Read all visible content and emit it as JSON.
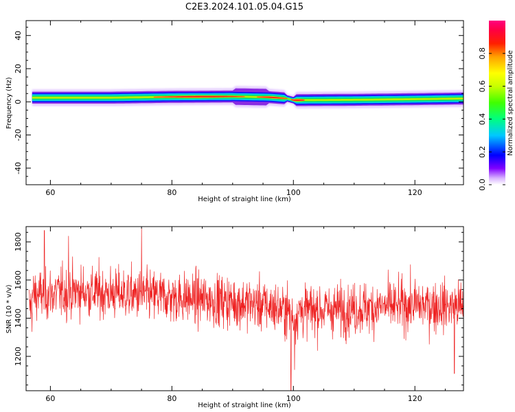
{
  "figure_title": "C2E3.2024.101.05.04.G15",
  "chart_data": [
    {
      "type": "heatmap",
      "title": "",
      "xlabel": "Height of straight line (km)",
      "ylabel": "Frequency (Hz)",
      "xlim": [
        56,
        128
      ],
      "ylim": [
        -50,
        49
      ],
      "xticks": [
        "60",
        "80",
        "100",
        "120"
      ],
      "yticks": [
        "40",
        "20",
        "0",
        "-20",
        "-40"
      ],
      "colorbar": {
        "label": "Normalized spectral amplitude",
        "range": [
          0.0,
          1.0
        ],
        "ticks": [
          "0.0",
          "0.2",
          "0.4",
          "0.6",
          "0.8"
        ],
        "colormap": [
          "#ffffff",
          "#d9b3ff",
          "#8000ff",
          "#0000ff",
          "#00c8ff",
          "#00ff80",
          "#40ff00",
          "#c8ff00",
          "#ffff00",
          "#ffa000",
          "#ff2000",
          "#ff0040",
          "#ff0080"
        ]
      },
      "band": {
        "center_hz": [
          {
            "x": 57,
            "y": 2.5
          },
          {
            "x": 70,
            "y": 2.5
          },
          {
            "x": 80,
            "y": 3
          },
          {
            "x": 90,
            "y": 3.2
          },
          {
            "x": 96,
            "y": 2.8
          },
          {
            "x": 99,
            "y": 2
          },
          {
            "x": 100,
            "y": 1
          },
          {
            "x": 110,
            "y": 1.2
          },
          {
            "x": 120,
            "y": 1.6
          },
          {
            "x": 128,
            "y": 2
          }
        ],
        "peak_segments": [
          {
            "x0": 77,
            "x1": 92,
            "level": 0.85
          },
          {
            "x0": 94,
            "x1": 99,
            "level": 0.8
          },
          {
            "x0": 99.6,
            "x1": 102,
            "level": 0.95
          }
        ]
      }
    },
    {
      "type": "line",
      "title": "",
      "xlabel": "Height of straight line (km)",
      "ylabel": "SNR (10 * v/v)",
      "xlim": [
        56,
        128
      ],
      "ylim": [
        1020,
        1880
      ],
      "xticks": [
        "60",
        "80",
        "100",
        "120"
      ],
      "yticks": [
        "1800",
        "1600",
        "1400",
        "1200"
      ],
      "series": [
        {
          "color": "#ee2222",
          "n_points": 1500,
          "noisy_around": [
            {
              "x": 57,
              "y": 1520
            },
            {
              "x": 65,
              "y": 1540
            },
            {
              "x": 75,
              "y": 1520
            },
            {
              "x": 85,
              "y": 1500
            },
            {
              "x": 95,
              "y": 1470
            },
            {
              "x": 99,
              "y": 1440
            },
            {
              "x": 100,
              "y": 1400
            },
            {
              "x": 101,
              "y": 1440
            },
            {
              "x": 110,
              "y": 1450
            },
            {
              "x": 120,
              "y": 1470
            },
            {
              "x": 128,
              "y": 1460
            }
          ],
          "spikes": [
            {
              "x": 59,
              "y": 1860
            },
            {
              "x": 63,
              "y": 1830
            },
            {
              "x": 75,
              "y": 1870
            },
            {
              "x": 99.6,
              "y": 1020
            },
            {
              "x": 100.2,
              "y": 1130
            },
            {
              "x": 126.5,
              "y": 1110
            }
          ]
        }
      ]
    }
  ]
}
